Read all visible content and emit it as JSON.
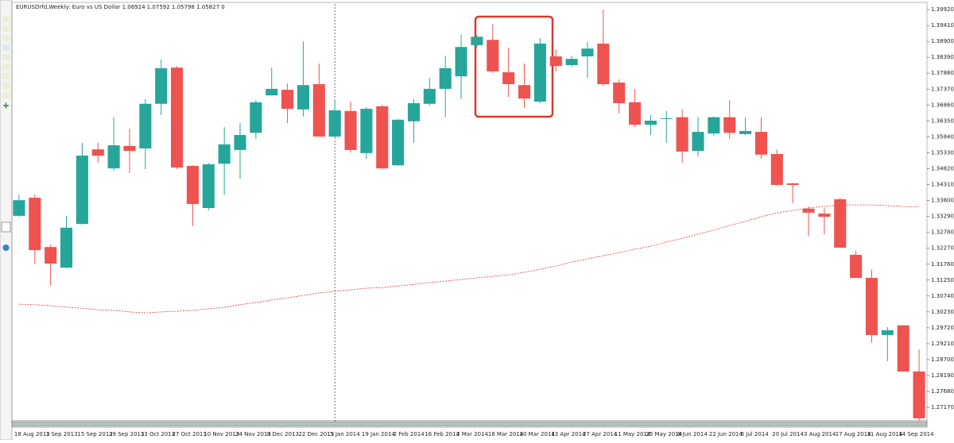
{
  "chart_data": {
    "type": "candlestick",
    "title": "EURUSDrfd,Weekly:  Euro vs US Dollar  1.06924 1.07592 1.05798 1.05827  0",
    "categories": [
      "18 Aug 2013",
      null,
      "1 Sep 2013",
      null,
      "15 Sep 2013",
      null,
      "29 Sep 2013",
      null,
      "13 Oct 2013",
      null,
      "27 Oct 2013",
      null,
      "10 Nov 2013",
      null,
      "24 Nov 2013",
      null,
      "8 Dec 2013",
      null,
      "22 Dec 2013",
      null,
      "5 Jan 2014",
      null,
      "19 Jan 2014",
      null,
      "2 Feb 2014",
      null,
      "16 Feb 2014",
      null,
      "2 Mar 2014",
      null,
      "16 Mar 2014",
      null,
      "30 Mar 2014",
      null,
      "13 Apr 2014",
      null,
      "27 Apr 2014",
      null,
      "11 May 2014",
      null,
      "25 May 2014",
      null,
      "8 Jun 2014",
      null,
      "22 Jun 2014",
      null,
      "6 Jul 2014",
      null,
      "20 Jul 2014",
      null,
      "3 Aug 2014",
      null,
      "17 Aug 2014",
      null,
      "31 Aug 2014",
      null,
      "14 Sep 2014",
      null
    ],
    "open": [
      1.3331,
      1.3389,
      1.3231,
      1.3165,
      1.3305,
      1.3544,
      1.3483,
      1.3555,
      1.3547,
      1.369,
      1.3806,
      1.3491,
      1.3356,
      1.3498,
      1.3542,
      1.3597,
      1.3717,
      1.3735,
      1.3672,
      1.3753,
      1.3585,
      1.3667,
      1.3532,
      1.3682,
      1.3493,
      1.3634,
      1.369,
      1.3738,
      1.3778,
      1.3878,
      1.3895,
      1.3791,
      1.375,
      1.3697,
      1.3842,
      1.3814,
      1.3842,
      1.3883,
      1.3758,
      1.3695,
      1.3623,
      1.3644,
      1.3647,
      1.3539,
      1.3595,
      1.3647,
      1.3593,
      1.36,
      1.3529,
      1.3435,
      1.3354,
      1.3338,
      1.3384,
      1.3206,
      1.3132,
      1.2949,
      1.298,
      1.2832
    ],
    "high": [
      1.3399,
      1.3399,
      1.3239,
      1.3331,
      1.3565,
      1.3565,
      1.3647,
      1.361,
      1.3705,
      1.3832,
      1.3811,
      1.3493,
      1.3501,
      1.3615,
      1.3628,
      1.3702,
      1.3806,
      1.3755,
      1.389,
      1.3819,
      1.37,
      1.3697,
      1.3679,
      1.3687,
      1.3641,
      1.3705,
      1.3773,
      1.3844,
      1.3911,
      1.3911,
      1.3946,
      1.387,
      1.3819,
      1.39,
      1.3865,
      1.3844,
      1.3888,
      1.3992,
      1.3768,
      1.3738,
      1.3654,
      1.3667,
      1.3672,
      1.3647,
      1.3649,
      1.3702,
      1.3647,
      1.3647,
      1.3544,
      1.3437,
      1.3361,
      1.3356,
      1.3389,
      1.3219,
      1.3158,
      1.2974,
      1.298,
      1.2903
    ],
    "low": [
      1.3328,
      1.3176,
      1.3107,
      1.3163,
      1.3303,
      1.3501,
      1.3476,
      1.3468,
      1.3481,
      1.3654,
      1.3481,
      1.3298,
      1.3349,
      1.3399,
      1.345,
      1.3577,
      1.3717,
      1.3628,
      1.3649,
      1.3585,
      1.3582,
      1.3534,
      1.3514,
      1.3481,
      1.3491,
      1.3565,
      1.3684,
      1.3647,
      1.3705,
      1.387,
      1.3789,
      1.3712,
      1.3677,
      1.3692,
      1.3794,
      1.3809,
      1.3773,
      1.3748,
      1.3659,
      1.3615,
      1.359,
      1.3565,
      1.3501,
      1.3521,
      1.3588,
      1.3577,
      1.359,
      1.3514,
      1.3427,
      1.3371,
      1.3265,
      1.3272,
      1.3229,
      1.3132,
      1.2924,
      1.2865,
      1.2832,
      1.2674
    ],
    "close": [
      1.3381,
      1.3221,
      1.3178,
      1.3293,
      1.3524,
      1.3524,
      1.3557,
      1.3539,
      1.369,
      1.3804,
      1.3486,
      1.3369,
      1.3496,
      1.356,
      1.359,
      1.3695,
      1.3738,
      1.3674,
      1.375,
      1.3585,
      1.3669,
      1.3542,
      1.3674,
      1.3483,
      1.3639,
      1.3692,
      1.3738,
      1.3804,
      1.3872,
      1.3905,
      1.3794,
      1.3753,
      1.3707,
      1.3883,
      1.3811,
      1.3834,
      1.3867,
      1.3753,
      1.3692,
      1.3623,
      1.3636,
      1.3644,
      1.3537,
      1.36,
      1.3647,
      1.3597,
      1.3603,
      1.3527,
      1.343,
      1.343,
      1.3341,
      1.3328,
      1.3229,
      1.3132,
      1.2949,
      1.2964,
      1.2832,
      1.2682
    ],
    "up_color": "#26a69a",
    "down_color": "#ef5350",
    "ma": {
      "color": "#e53935",
      "values": [
        1.3048,
        1.3046,
        1.3043,
        1.3038,
        1.3035,
        1.303,
        1.3028,
        1.3023,
        1.302,
        1.3023,
        1.3025,
        1.3028,
        1.3033,
        1.3038,
        1.3046,
        1.3053,
        1.3061,
        1.3068,
        1.3076,
        1.3084,
        1.3089,
        1.3094,
        1.3099,
        1.3101,
        1.3106,
        1.3111,
        1.3117,
        1.3122,
        1.3127,
        1.3132,
        1.3137,
        1.3142,
        1.315,
        1.316,
        1.317,
        1.3183,
        1.3193,
        1.3203,
        1.3213,
        1.3224,
        1.3234,
        1.3247,
        1.3259,
        1.3272,
        1.3285,
        1.33,
        1.3313,
        1.3328,
        1.3341,
        1.3348,
        1.3356,
        1.3361,
        1.3366,
        1.3366,
        1.3366,
        1.3364,
        1.3361,
        1.3359
      ]
    },
    "ylim": [
      1.2669,
      1.401
    ],
    "yticks": [
      {
        "value": 1.3992,
        "label": "1.39920"
      },
      {
        "value": 1.3941,
        "label": "1.39410"
      },
      {
        "value": 1.389,
        "label": "1.38900"
      },
      {
        "value": 1.3839,
        "label": "1.38390"
      },
      {
        "value": 1.3788,
        "label": "1.37880"
      },
      {
        "value": 1.3737,
        "label": "1.37370"
      },
      {
        "value": 1.3686,
        "label": "1.36860"
      },
      {
        "value": 1.3635,
        "label": "1.36350"
      },
      {
        "value": 1.3584,
        "label": "1.35840"
      },
      {
        "value": 1.3533,
        "label": "1.35330"
      },
      {
        "value": 1.3482,
        "label": "1.34820"
      },
      {
        "value": 1.3431,
        "label": "1.34310"
      },
      {
        "value": 1.338,
        "label": "1.33800"
      },
      {
        "value": 1.3329,
        "label": "1.33290"
      },
      {
        "value": 1.3278,
        "label": "1.32780"
      },
      {
        "value": 1.3227,
        "label": "1.32270"
      },
      {
        "value": 1.3176,
        "label": "1.31760"
      },
      {
        "value": 1.3125,
        "label": "1.31250"
      },
      {
        "value": 1.3074,
        "label": "1.30740"
      },
      {
        "value": 1.3023,
        "label": "1.30230"
      },
      {
        "value": 1.2972,
        "label": "1.29720"
      },
      {
        "value": 1.2921,
        "label": "1.29210"
      },
      {
        "value": 1.287,
        "label": "1.28700"
      },
      {
        "value": 1.2819,
        "label": "1.28190"
      },
      {
        "value": 1.2768,
        "label": "1.27680"
      },
      {
        "value": 1.2717,
        "label": "1.27170"
      }
    ],
    "separator_index": 20,
    "grid": false
  }
}
